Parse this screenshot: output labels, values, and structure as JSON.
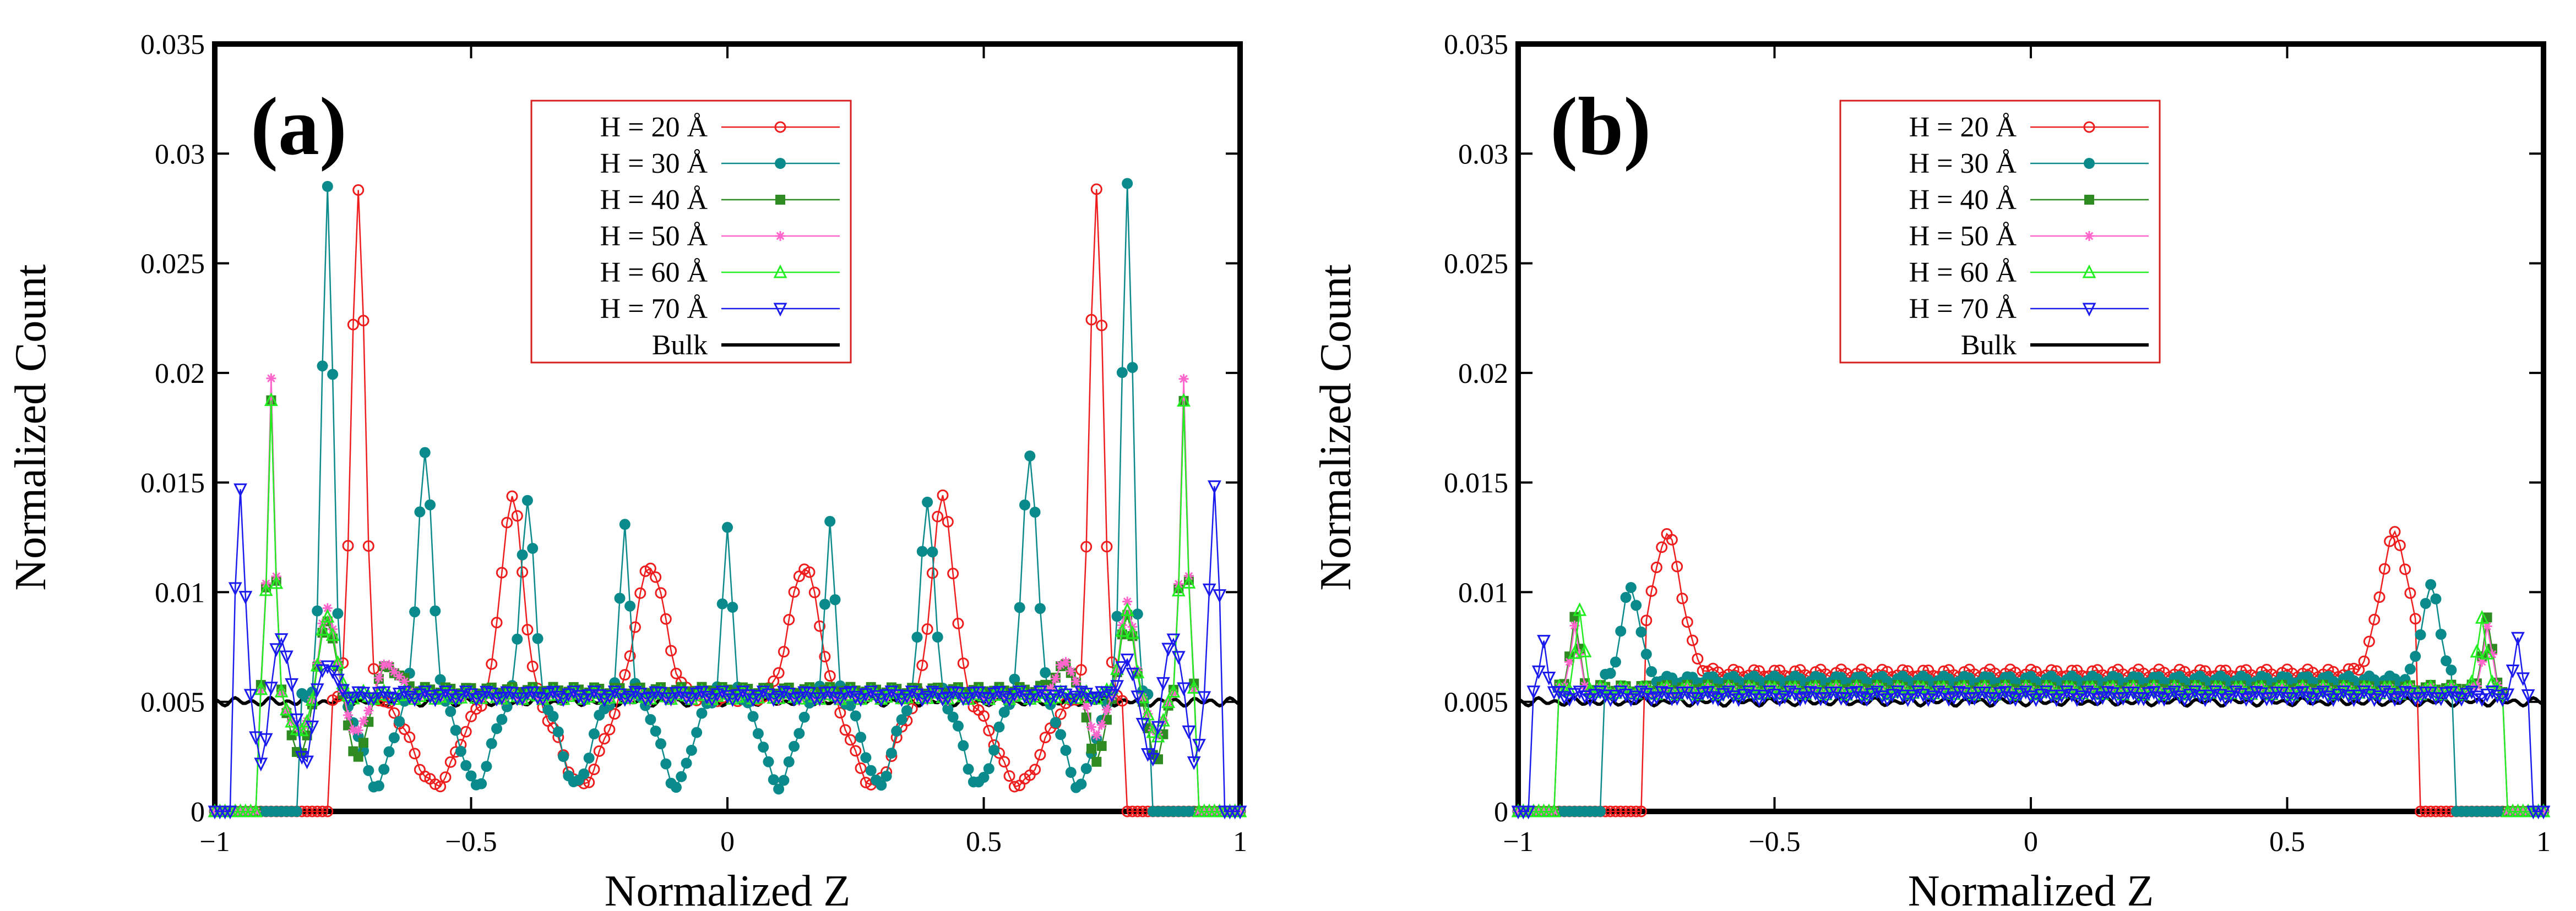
{
  "colors": {
    "frame": "#000000",
    "legend_border": "#d62020",
    "H20": "#ee1c1c",
    "H30": "#0a8a8a",
    "H40": "#2e8b22",
    "H50": "#ff66cc",
    "H60": "#22ee22",
    "H70": "#1a1aee",
    "Bulk": "#000000"
  },
  "chart_data": [
    {
      "type": "line",
      "panel_label": "(a)",
      "xlabel": "Normalized Z",
      "ylabel": "Normalized Count",
      "xlim": [
        -1,
        1
      ],
      "ylim": [
        0,
        0.035
      ],
      "x_ticks": [
        "−1",
        "−0.5",
        "0",
        "0.5",
        "1"
      ],
      "x_tick_values": [
        -1,
        -0.5,
        0,
        0.5,
        1
      ],
      "y_ticks": [
        "0",
        "0.005",
        "0.01",
        "0.015",
        "0.02",
        "0.025",
        "0.03",
        "0.035"
      ],
      "y_tick_values": [
        0,
        0.005,
        0.01,
        0.015,
        0.02,
        0.025,
        0.03,
        0.035
      ],
      "legend_position": "top-center",
      "series": [
        {
          "name": "H = 20 Å",
          "key": "H20",
          "marker": "circle-open",
          "wall": 0.77,
          "peaks": [
            [
              0.72,
              0.0285,
              0.018
            ],
            [
              0.42,
              0.0143,
              0.03
            ],
            [
              0.15,
              0.0112,
              0.04
            ]
          ],
          "valley": 0.0012,
          "baseline": 0.0052
        },
        {
          "name": "H = 30 Å",
          "key": "H30",
          "marker": "circle-filled",
          "wall": 0.83,
          "peaks": [
            [
              0.78,
              0.0285,
              0.015
            ],
            [
              0.59,
              0.0163,
              0.02
            ],
            [
              0.39,
              0.0143,
              0.018
            ],
            [
              0.2,
              0.0131,
              0.013
            ],
            [
              0.0,
              0.0128,
              0.013
            ]
          ],
          "valley": 0.0012,
          "baseline": 0.0052
        },
        {
          "name": "H = 40 Å",
          "key": "H40",
          "marker": "square-filled",
          "wall": 0.91,
          "peaks": [
            [
              0.89,
              0.0188,
              0.01
            ],
            [
              0.78,
              0.0088,
              0.02
            ],
            [
              0.66,
              0.0066,
              0.03
            ]
          ],
          "valley": 0.0024,
          "baseline": 0.0055
        },
        {
          "name": "H = 50 Å",
          "key": "H50",
          "marker": "asterisk",
          "wall": 0.91,
          "peaks": [
            [
              0.89,
              0.0198,
              0.01
            ],
            [
              0.78,
              0.0094,
              0.02
            ],
            [
              0.66,
              0.0067,
              0.03
            ]
          ],
          "valley": 0.0036,
          "baseline": 0.0052
        },
        {
          "name": "H = 60 Å",
          "key": "H60",
          "marker": "triangle-up-open",
          "wall": 0.91,
          "peaks": [
            [
              0.89,
              0.0188,
              0.01
            ],
            [
              0.78,
              0.009,
              0.02
            ]
          ],
          "valley": 0.0035,
          "baseline": 0.0053
        },
        {
          "name": "H = 70 Å",
          "key": "H70",
          "marker": "triangle-down-open",
          "wall": 0.96,
          "peaks": [
            [
              0.95,
              0.0148,
              0.012
            ],
            [
              0.87,
              0.0079,
              0.02
            ],
            [
              0.78,
              0.0068,
              0.02
            ]
          ],
          "valley": 0.0022,
          "baseline": 0.0053
        },
        {
          "name": "Bulk",
          "key": "Bulk",
          "marker": "line",
          "wall": 1.0,
          "peaks": [],
          "valley": 0.005,
          "baseline": 0.005
        }
      ]
    },
    {
      "type": "line",
      "panel_label": "(b)",
      "xlabel": "Normalized Z",
      "ylabel": "Normalized Count",
      "xlim": [
        -1,
        1
      ],
      "ylim": [
        0,
        0.035
      ],
      "x_ticks": [
        "−1",
        "−0.5",
        "0",
        "0.5",
        "1"
      ],
      "x_tick_values": [
        -1,
        -0.5,
        0,
        0.5,
        1
      ],
      "y_ticks": [
        "0",
        "0.005",
        "0.01",
        "0.015",
        "0.02",
        "0.025",
        "0.03",
        "0.035"
      ],
      "y_tick_values": [
        0,
        0.005,
        0.01,
        0.015,
        0.02,
        0.025,
        0.03,
        0.035
      ],
      "legend_position": "top-center",
      "series": [
        {
          "name": "H = 20 Å",
          "key": "H20",
          "marker": "circle-open",
          "wall": 0.75,
          "peaks": [
            [
              0.71,
              0.0126,
              0.04
            ]
          ],
          "valley": 0.0062,
          "baseline": 0.0063
        },
        {
          "name": "H = 30 Å",
          "key": "H30",
          "marker": "circle-filled",
          "wall": 0.83,
          "peaks": [
            [
              0.78,
              0.0102,
              0.025
            ]
          ],
          "valley": 0.0058,
          "baseline": 0.006
        },
        {
          "name": "H = 40 Å",
          "key": "H40",
          "marker": "square-filled",
          "wall": 0.92,
          "peaks": [
            [
              0.89,
              0.0089,
              0.012
            ]
          ],
          "valley": 0.0055,
          "baseline": 0.0056
        },
        {
          "name": "H = 50 Å",
          "key": "H50",
          "marker": "asterisk",
          "wall": 0.92,
          "peaks": [
            [
              0.89,
              0.0085,
              0.012
            ]
          ],
          "valley": 0.0054,
          "baseline": 0.0055
        },
        {
          "name": "H = 60 Å",
          "key": "H60",
          "marker": "triangle-up-open",
          "wall": 0.92,
          "peaks": [
            [
              0.88,
              0.009,
              0.012
            ]
          ],
          "valley": 0.0054,
          "baseline": 0.0055
        },
        {
          "name": "H = 70 Å",
          "key": "H70",
          "marker": "triangle-down-open",
          "wall": 0.97,
          "peaks": [
            [
              0.95,
              0.0079,
              0.01
            ]
          ],
          "valley": 0.0044,
          "baseline": 0.0053
        },
        {
          "name": "Bulk",
          "key": "Bulk",
          "marker": "line",
          "wall": 1.0,
          "peaks": [],
          "valley": 0.005,
          "baseline": 0.005
        }
      ]
    }
  ]
}
